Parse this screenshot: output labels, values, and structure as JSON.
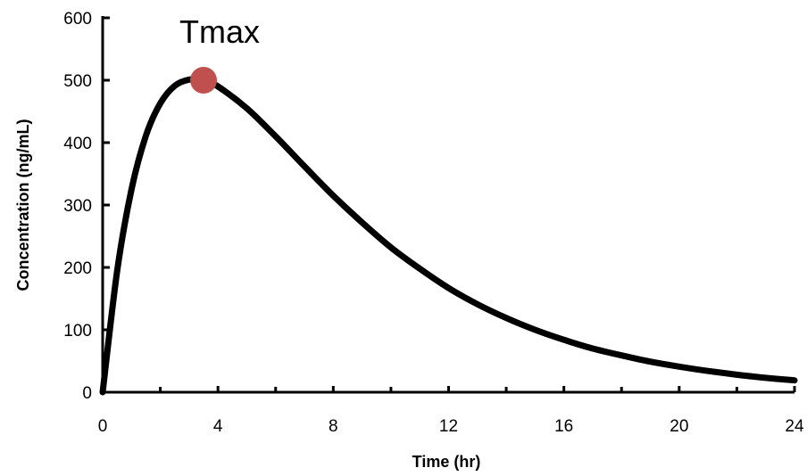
{
  "chart_data": {
    "type": "line",
    "xlabel": "Time (hr)",
    "ylabel": "Concentration (ng/mL)",
    "xlim": [
      0,
      24
    ],
    "ylim": [
      0,
      600
    ],
    "xticks": [
      0,
      4,
      8,
      12,
      16,
      20,
      24
    ],
    "xticks_minor": [
      2,
      6,
      10,
      14,
      18,
      22
    ],
    "yticks": [
      0,
      100,
      200,
      300,
      400,
      500,
      600
    ],
    "grid": false,
    "legend": "none",
    "series": [
      {
        "color": "#000000",
        "x": [
          0,
          0.5,
          1,
          1.5,
          2,
          2.5,
          3,
          3.5,
          4,
          5,
          6,
          7,
          8,
          9,
          10,
          11,
          12,
          13,
          14,
          15,
          16,
          17,
          18,
          19,
          20,
          21,
          22,
          23,
          24
        ],
        "y": [
          0,
          193,
          325,
          411,
          463,
          491,
          501,
          500,
          490,
          455,
          410,
          362,
          315,
          272,
          232,
          198,
          167,
          141,
          119,
          100,
          84,
          70,
          59,
          49,
          41,
          34,
          28,
          23,
          19
        ]
      }
    ],
    "annotations": [
      {
        "text": "Tmax",
        "x": 3.5,
        "y": 500,
        "marker_color": "#c0504d"
      }
    ]
  }
}
